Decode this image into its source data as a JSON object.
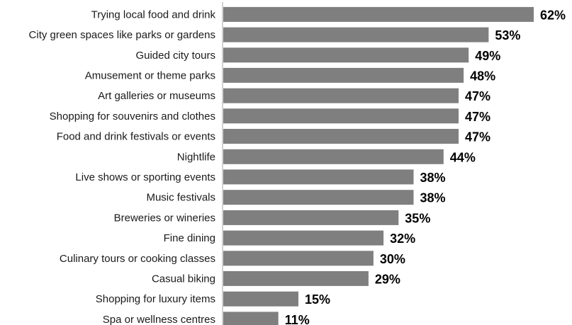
{
  "chart_data": {
    "type": "bar",
    "orientation": "horizontal",
    "categories": [
      "Trying local food and drink",
      "City green spaces like parks or gardens",
      "Guided city tours",
      "Amusement or theme parks",
      "Art galleries or museums",
      "Shopping for souvenirs and clothes",
      "Food and drink festivals or events",
      "Nightlife",
      "Live shows or sporting events",
      "Music festivals",
      "Breweries or wineries",
      "Fine dining",
      "Culinary tours or cooking classes",
      "Casual biking",
      "Shopping for luxury items",
      "Spa or wellness centres"
    ],
    "values": [
      62,
      53,
      49,
      48,
      47,
      47,
      47,
      44,
      38,
      38,
      35,
      32,
      30,
      29,
      15,
      11
    ],
    "value_labels": [
      "62%",
      "53%",
      "49%",
      "48%",
      "47%",
      "47%",
      "47%",
      "44%",
      "38%",
      "38%",
      "35%",
      "32%",
      "30%",
      "29%",
      "15%",
      "11%"
    ],
    "title": "",
    "xlabel": "",
    "ylabel": "",
    "xlim": [
      0,
      62
    ],
    "grid": false,
    "legend": "none",
    "colors": {
      "bar": "#7f7f7f",
      "axis": "#a6a6a6",
      "label": "#1a1a1a",
      "value": "#000000"
    }
  }
}
